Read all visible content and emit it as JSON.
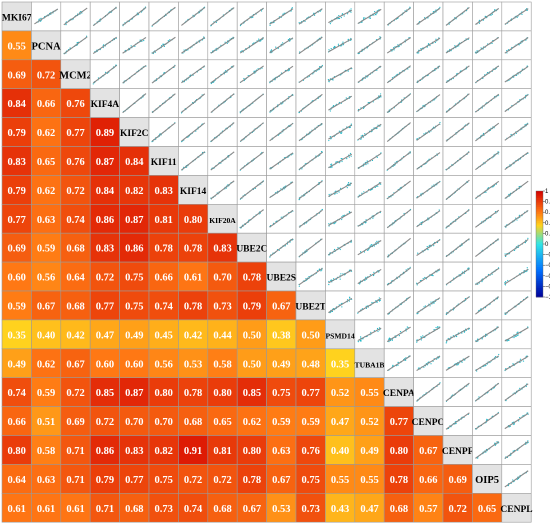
{
  "chart_data": {
    "type": "heatmap",
    "title": "",
    "genes": [
      "MKI67",
      "PCNA",
      "MCM2",
      "KIF4A",
      "KIF2C",
      "KIF11",
      "KIF14",
      "KIF20A",
      "UBE2C",
      "UBE2S",
      "UBE2T",
      "PSMD14",
      "TUBA1B",
      "CENPA",
      "CENPO",
      "CENPF",
      "OIP5",
      "CENPL"
    ],
    "lower_triangle_correlations": [
      [],
      [
        0.55
      ],
      [
        0.69,
        0.72
      ],
      [
        0.84,
        0.66,
        0.76
      ],
      [
        0.79,
        0.62,
        0.77,
        0.89
      ],
      [
        0.83,
        0.65,
        0.76,
        0.87,
        0.84
      ],
      [
        0.79,
        0.62,
        0.72,
        0.84,
        0.82,
        0.83
      ],
      [
        0.77,
        0.63,
        0.74,
        0.86,
        0.87,
        0.81,
        0.8
      ],
      [
        0.69,
        0.59,
        0.68,
        0.83,
        0.86,
        0.78,
        0.78,
        0.83
      ],
      [
        0.6,
        0.56,
        0.64,
        0.72,
        0.75,
        0.66,
        0.61,
        0.7,
        0.78
      ],
      [
        0.59,
        0.67,
        0.68,
        0.77,
        0.75,
        0.74,
        0.78,
        0.73,
        0.79,
        0.67
      ],
      [
        0.35,
        0.4,
        0.42,
        0.47,
        0.49,
        0.45,
        0.42,
        0.44,
        0.5,
        0.38,
        0.5
      ],
      [
        0.49,
        0.62,
        0.67,
        0.6,
        0.6,
        0.56,
        0.53,
        0.58,
        0.5,
        0.49,
        0.48,
        0.35
      ],
      [
        0.74,
        0.59,
        0.72,
        0.85,
        0.87,
        0.8,
        0.78,
        0.8,
        0.85,
        0.75,
        0.77,
        0.52,
        0.55
      ],
      [
        0.66,
        0.51,
        0.69,
        0.72,
        0.7,
        0.7,
        0.68,
        0.65,
        0.62,
        0.59,
        0.59,
        0.47,
        0.52,
        0.77
      ],
      [
        0.8,
        0.58,
        0.71,
        0.86,
        0.83,
        0.82,
        0.91,
        0.81,
        0.8,
        0.63,
        0.76,
        0.4,
        0.49,
        0.8,
        0.67
      ],
      [
        0.64,
        0.63,
        0.71,
        0.79,
        0.77,
        0.75,
        0.72,
        0.72,
        0.78,
        0.67,
        0.75,
        0.55,
        0.55,
        0.78,
        0.66,
        0.69
      ],
      [
        0.61,
        0.61,
        0.61,
        0.71,
        0.68,
        0.73,
        0.74,
        0.68,
        0.67,
        0.53,
        0.73,
        0.43,
        0.47,
        0.68,
        0.57,
        0.72,
        0.65
      ]
    ],
    "upper_triangle": "scatter plots with fitted regression line",
    "colorbar": {
      "ticks": [
        1,
        0.8,
        0.6,
        0.4,
        0.2,
        0,
        -0.2,
        -0.4,
        -0.6,
        -0.8,
        -1
      ],
      "tick_labels": [
        "1",
        "0.8",
        "0.6",
        "0.4",
        "0.2",
        "0",
        "−0.2",
        "−0.4",
        "−0.6",
        "−0.8",
        "−1"
      ],
      "colors": {
        "high": "#d40000",
        "mid_high": "#ffd21e",
        "zero": "#32e6e6",
        "low": "#00009a"
      }
    },
    "scatter_color": "#22b8c8",
    "fit_line_color": "#8a8a8a",
    "grid": true
  }
}
